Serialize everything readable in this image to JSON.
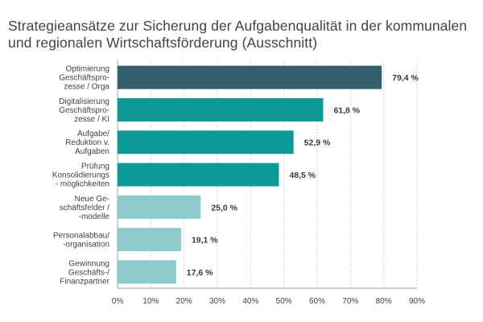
{
  "chart_data": {
    "type": "bar",
    "orientation": "horizontal",
    "title": "Strategieansätze zur Sicherung der Aufgabenqualität in der kommunalen und regionalen Wirtschaftsförderung (Ausschnitt)",
    "categories": [
      [
        "Optimierung",
        "Geschäftspro-",
        "zesse / Orga"
      ],
      [
        "Digitalisierung",
        "Geschäftspro-",
        "zesse / KI"
      ],
      [
        "Aufgabe/",
        "Reduktion v.",
        "Aufgaben"
      ],
      [
        "Prüfung",
        "Konsolidierungs",
        "- möglichkeiten"
      ],
      [
        "Neue Ge-",
        "schäftsfelder /",
        "-modelle"
      ],
      [
        "Personalabbau/",
        "-organisation"
      ],
      [
        "Gewinnung",
        "Geschäfts-/",
        "Finanzpartner"
      ]
    ],
    "values": [
      79.4,
      61.8,
      52.9,
      48.5,
      25.0,
      19.1,
      17.6
    ],
    "value_labels": [
      "79,4 %",
      "61,8 %",
      "52,9 %",
      "48,5 %",
      "25,0 %",
      "19,1 %",
      "17,6 %"
    ],
    "bar_colors": [
      "#335f6f",
      "#0f9996",
      "#0f9996",
      "#0f9996",
      "#8fcbcd",
      "#8fcbcd",
      "#8fcbcd"
    ],
    "xlim": [
      0,
      90
    ],
    "xticks": [
      0,
      10,
      20,
      30,
      40,
      50,
      60,
      70,
      80,
      90
    ],
    "xtick_labels": [
      "0%",
      "10%",
      "20%",
      "30%",
      "40%",
      "50%",
      "60%",
      "70%",
      "80%",
      "90%"
    ],
    "grid": true,
    "legend": "none",
    "xlabel": "",
    "ylabel": ""
  }
}
